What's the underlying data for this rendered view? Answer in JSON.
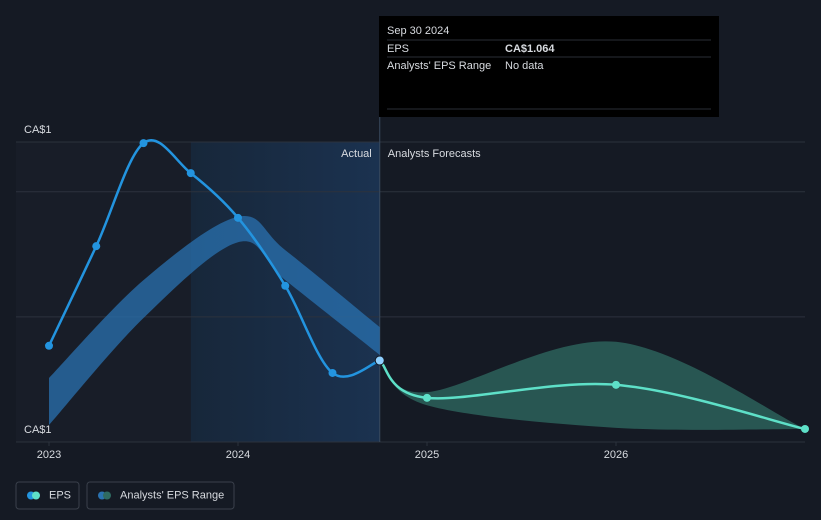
{
  "chart_data": {
    "type": "line",
    "series": [
      {
        "name": "EPS",
        "color": "#2394df",
        "forecast_color": "#5ee0c8",
        "x": [
          2023,
          2023.25,
          2023.5,
          2023.75,
          2024,
          2024.25,
          2024.5,
          2024.75
        ],
        "values": [
          1.09,
          1.266,
          1.448,
          1.395,
          1.316,
          1.196,
          1.042,
          1.064
        ],
        "forecast_x": [
          2024.75,
          2025,
          2026,
          2027
        ],
        "forecast_values": [
          1.064,
          0.998,
          1.021,
          0.943
        ]
      },
      {
        "name": "Analysts' EPS Range",
        "color": "#2a72b0",
        "forecast_color": "#2f6b62",
        "x": [
          2023,
          2023.5,
          2024,
          2024.25,
          2024.75
        ],
        "low": [
          0.95,
          1.139,
          1.273,
          1.206,
          1.074
        ],
        "high": [
          1.033,
          1.206,
          1.318,
          1.259,
          1.123
        ],
        "forecast_x": [
          2024.75,
          2025,
          2026,
          2027
        ],
        "forecast_low": [
          1.064,
          0.985,
          0.945,
          0.943
        ],
        "forecast_high": [
          1.064,
          1.008,
          1.097,
          0.943
        ]
      }
    ],
    "xlim": [
      2023,
      2027
    ],
    "xticks": [
      2023,
      2024,
      2025,
      2026
    ],
    "ylim": [
      0.92,
      1.45
    ],
    "yticks": [
      {
        "value": 1.45,
        "label": "CA$1"
      },
      {
        "value": 1.362,
        "label": null
      },
      {
        "value": 1.141,
        "label": null
      },
      {
        "value": 0.92,
        "label": "CA$1"
      }
    ],
    "grid": true,
    "shade_x": [
      2023.75,
      2024.75
    ],
    "divider_x": 2024.75,
    "actual_label": "Actual",
    "forecast_label": "Analysts Forecasts",
    "tooltip": {
      "title": "Sep 30 2024",
      "rows": [
        {
          "label": "EPS",
          "value": "CA$1.064"
        },
        {
          "label": "Analysts' EPS Range",
          "value": "No data"
        }
      ]
    }
  }
}
